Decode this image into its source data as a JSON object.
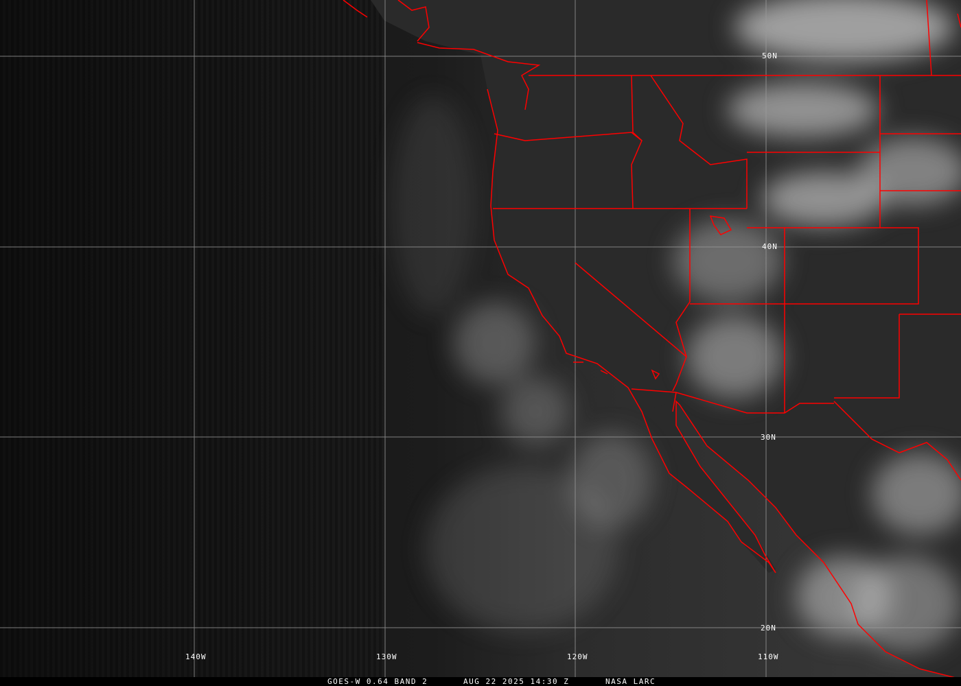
{
  "image": {
    "type": "satellite-visible-imagery",
    "colors": {
      "borders": "#ff0000",
      "grid": "#9a9a9a",
      "text": "#ffffff"
    }
  },
  "grid": {
    "latitude_labels": [
      "50N",
      "40N",
      "30N",
      "20N"
    ],
    "longitude_labels": [
      "140W",
      "130W",
      "120W",
      "110W"
    ]
  },
  "caption": {
    "product": "GOES-W 0.64 BAND 2",
    "datetime": "AUG 22 2025 14:30 Z",
    "credit": "NASA LARC"
  }
}
